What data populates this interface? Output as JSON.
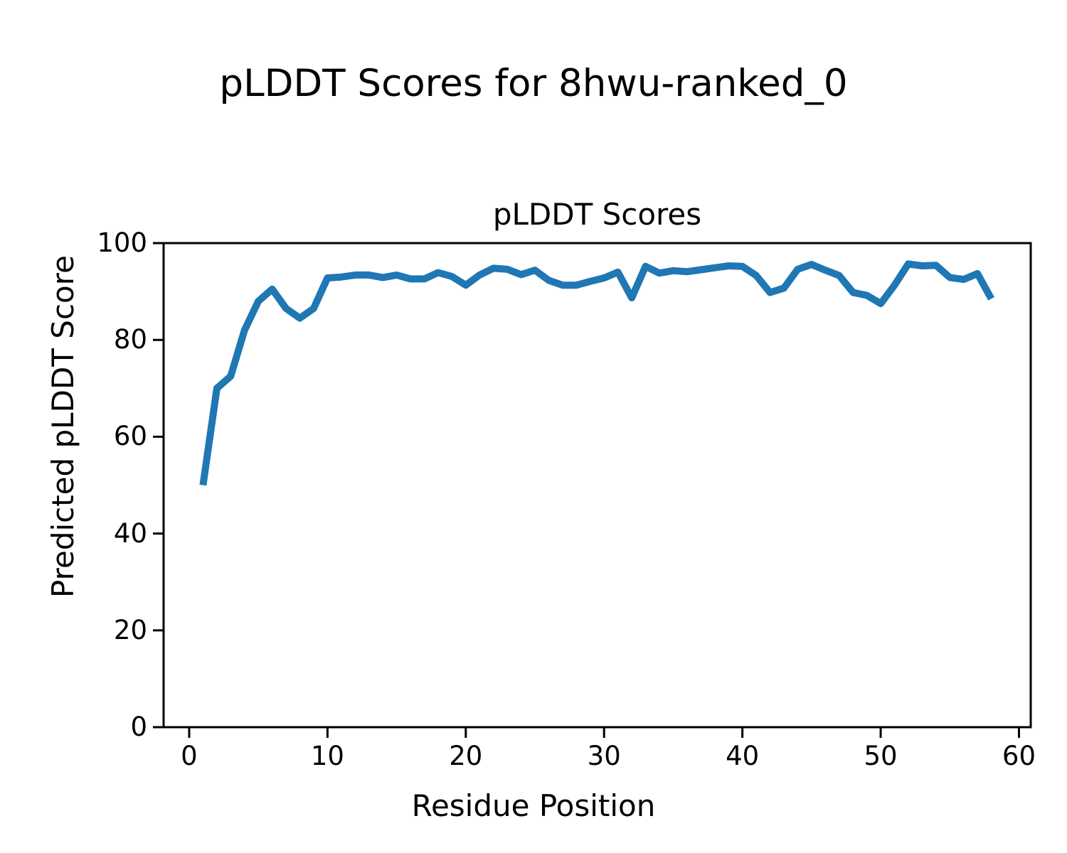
{
  "figure": {
    "suptitle": "pLDDT Scores for 8hwu-ranked_0"
  },
  "chart_data": {
    "type": "line",
    "suptitle": "pLDDT Scores for 8hwu-ranked_0",
    "title": "pLDDT Scores",
    "xlabel": "Residue Position",
    "ylabel": "Predicted pLDDT Score",
    "series": [
      {
        "name": "pLDDT",
        "x": [
          1,
          2,
          3,
          4,
          5,
          6,
          7,
          8,
          9,
          10,
          11,
          12,
          13,
          14,
          15,
          16,
          17,
          18,
          19,
          20,
          21,
          22,
          23,
          24,
          25,
          26,
          27,
          28,
          29,
          30,
          31,
          32,
          33,
          34,
          35,
          36,
          37,
          38,
          39,
          40,
          41,
          42,
          43,
          44,
          45,
          46,
          47,
          48,
          49,
          50,
          51,
          52,
          53,
          54,
          55,
          56,
          57,
          58
        ],
        "y": [
          50,
          70,
          72.5,
          82,
          88,
          90.5,
          86.5,
          84.5,
          86.5,
          92.8,
          93,
          93.4,
          93.4,
          92.9,
          93.4,
          92.6,
          92.6,
          93.9,
          93.1,
          91.3,
          93.4,
          94.8,
          94.6,
          93.5,
          94.4,
          92.3,
          91.3,
          91.3,
          92.1,
          92.8,
          94.0,
          88.7,
          95.2,
          93.8,
          94.3,
          94.1,
          94.5,
          94.9,
          95.3,
          95.2,
          93.3,
          89.8,
          90.7,
          94.6,
          95.6,
          94.4,
          93.3,
          89.8,
          89.2,
          87.5,
          91.3,
          95.7,
          95.3,
          95.4,
          92.9,
          92.5,
          93.7,
          88.5
        ]
      }
    ],
    "xlim": [
      -1.85,
      60.85
    ],
    "ylim": [
      0,
      100
    ],
    "x_ticks": [
      0,
      10,
      20,
      30,
      40,
      50,
      60
    ],
    "y_ticks": [
      0,
      20,
      40,
      60,
      80,
      100
    ],
    "grid": false,
    "legend": "none",
    "line_color": "#1f77b4",
    "axis_color": "#000000"
  }
}
